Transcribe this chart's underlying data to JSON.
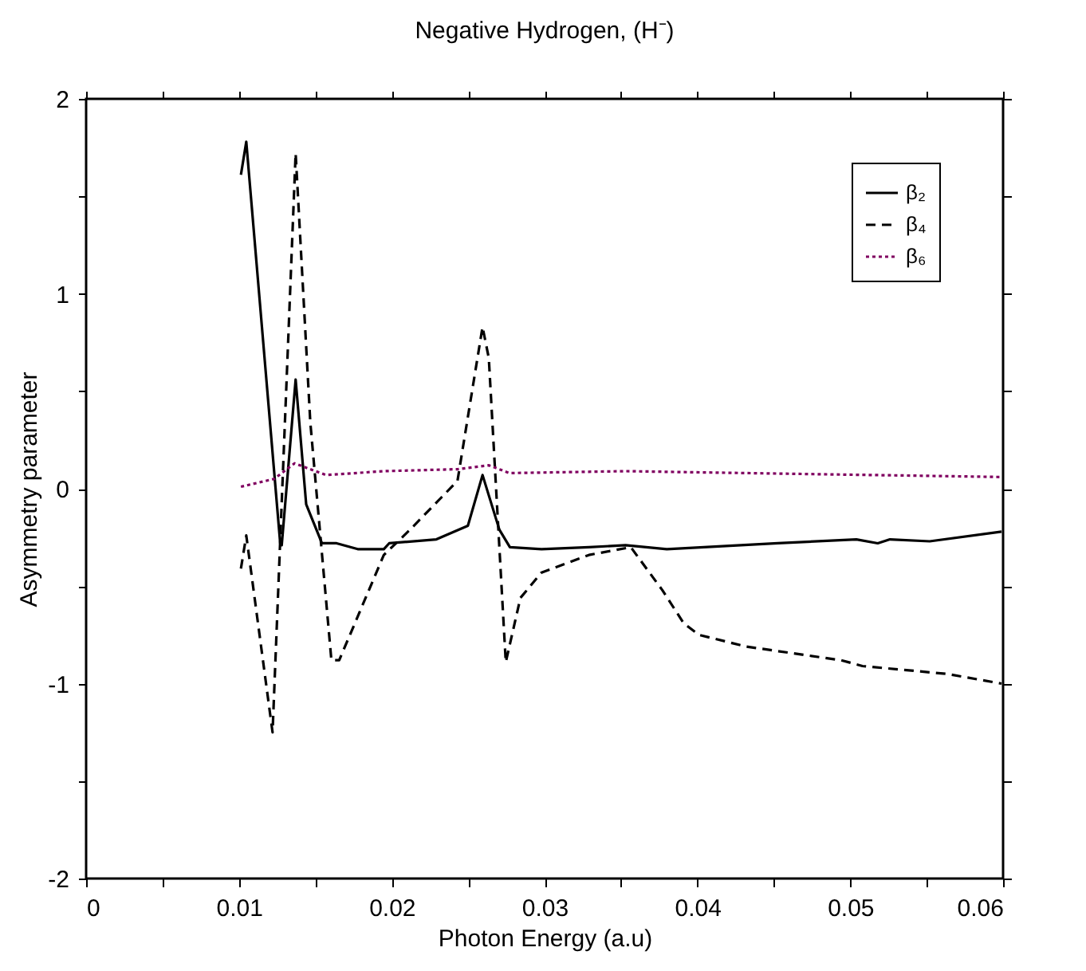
{
  "chart_data": {
    "type": "line",
    "title": "Negative Hydrogen, (H⁻)",
    "xlabel": "Photon Energy (a.u)",
    "ylabel": "Asymmetry parameter",
    "xlim": [
      0,
      0.06
    ],
    "ylim": [
      -2,
      2
    ],
    "xticks": [
      0,
      {
        "value": 0.005,
        "label": null
      },
      0.01,
      {
        "value": 0.015,
        "label": null
      },
      0.02,
      {
        "value": 0.025,
        "label": null
      },
      0.03,
      {
        "value": 0.035,
        "label": null
      },
      0.04,
      {
        "value": 0.045,
        "label": null
      },
      0.05,
      {
        "value": 0.055,
        "label": null
      },
      0.06
    ],
    "yticks": [
      -2,
      {
        "value": -1.5,
        "label": null
      },
      -1,
      {
        "value": -0.5,
        "label": null
      },
      0,
      {
        "value": 0.5,
        "label": null
      },
      1,
      {
        "value": 1.5,
        "label": null
      },
      2
    ],
    "grid": false,
    "legend": "top right",
    "marker": "none",
    "series": [
      {
        "name": "β₂",
        "color": "#000000",
        "line_style": "solid",
        "x": [
          0.01013,
          0.01048,
          0.0127,
          0.0128,
          0.01371,
          0.0144,
          0.01543,
          0.01639,
          0.01777,
          0.01948,
          0.01983,
          0.02292,
          0.02498,
          0.02594,
          0.02704,
          0.02773,
          0.0298,
          0.0329,
          0.0353,
          0.038,
          0.04526,
          0.0504,
          0.0518,
          0.0526,
          0.0552,
          0.0599
        ],
        "values": [
          1.61,
          1.78,
          -0.28,
          -0.29,
          0.56,
          -0.08,
          -0.28,
          -0.28,
          -0.31,
          -0.31,
          -0.28,
          -0.26,
          -0.19,
          0.07,
          -0.21,
          -0.3,
          -0.31,
          -0.3,
          -0.29,
          -0.31,
          -0.28,
          -0.26,
          -0.28,
          -0.26,
          -0.27,
          -0.22
        ]
      },
      {
        "name": "β₄",
        "color": "#000000",
        "line_style": "dashed",
        "x": [
          0.01013,
          0.01048,
          0.0122,
          0.01371,
          0.01467,
          0.01605,
          0.01656,
          0.01948,
          0.0212,
          0.0243,
          0.02594,
          0.02635,
          0.02746,
          0.02842,
          0.0298,
          0.0329,
          0.03564,
          0.0377,
          0.0391,
          0.0401,
          0.0432,
          0.0494,
          0.0508,
          0.0563,
          0.0599
        ],
        "values": [
          -0.41,
          -0.24,
          -1.25,
          1.72,
          0.34,
          -0.88,
          -0.88,
          -0.34,
          -0.21,
          0.04,
          0.83,
          0.67,
          -0.89,
          -0.56,
          -0.43,
          -0.34,
          -0.3,
          -0.52,
          -0.69,
          -0.75,
          -0.81,
          -0.88,
          -0.91,
          -0.95,
          -1.0
        ]
      },
      {
        "name": "β₆",
        "color": "#800060",
        "line_style": "dotted",
        "x": [
          0.01013,
          0.0123,
          0.01364,
          0.0157,
          0.0195,
          0.0243,
          0.02636,
          0.0277,
          0.0353,
          0.0432,
          0.0599
        ],
        "values": [
          0.01,
          0.05,
          0.13,
          0.07,
          0.09,
          0.1,
          0.12,
          0.08,
          0.09,
          0.08,
          0.06
        ]
      }
    ]
  }
}
